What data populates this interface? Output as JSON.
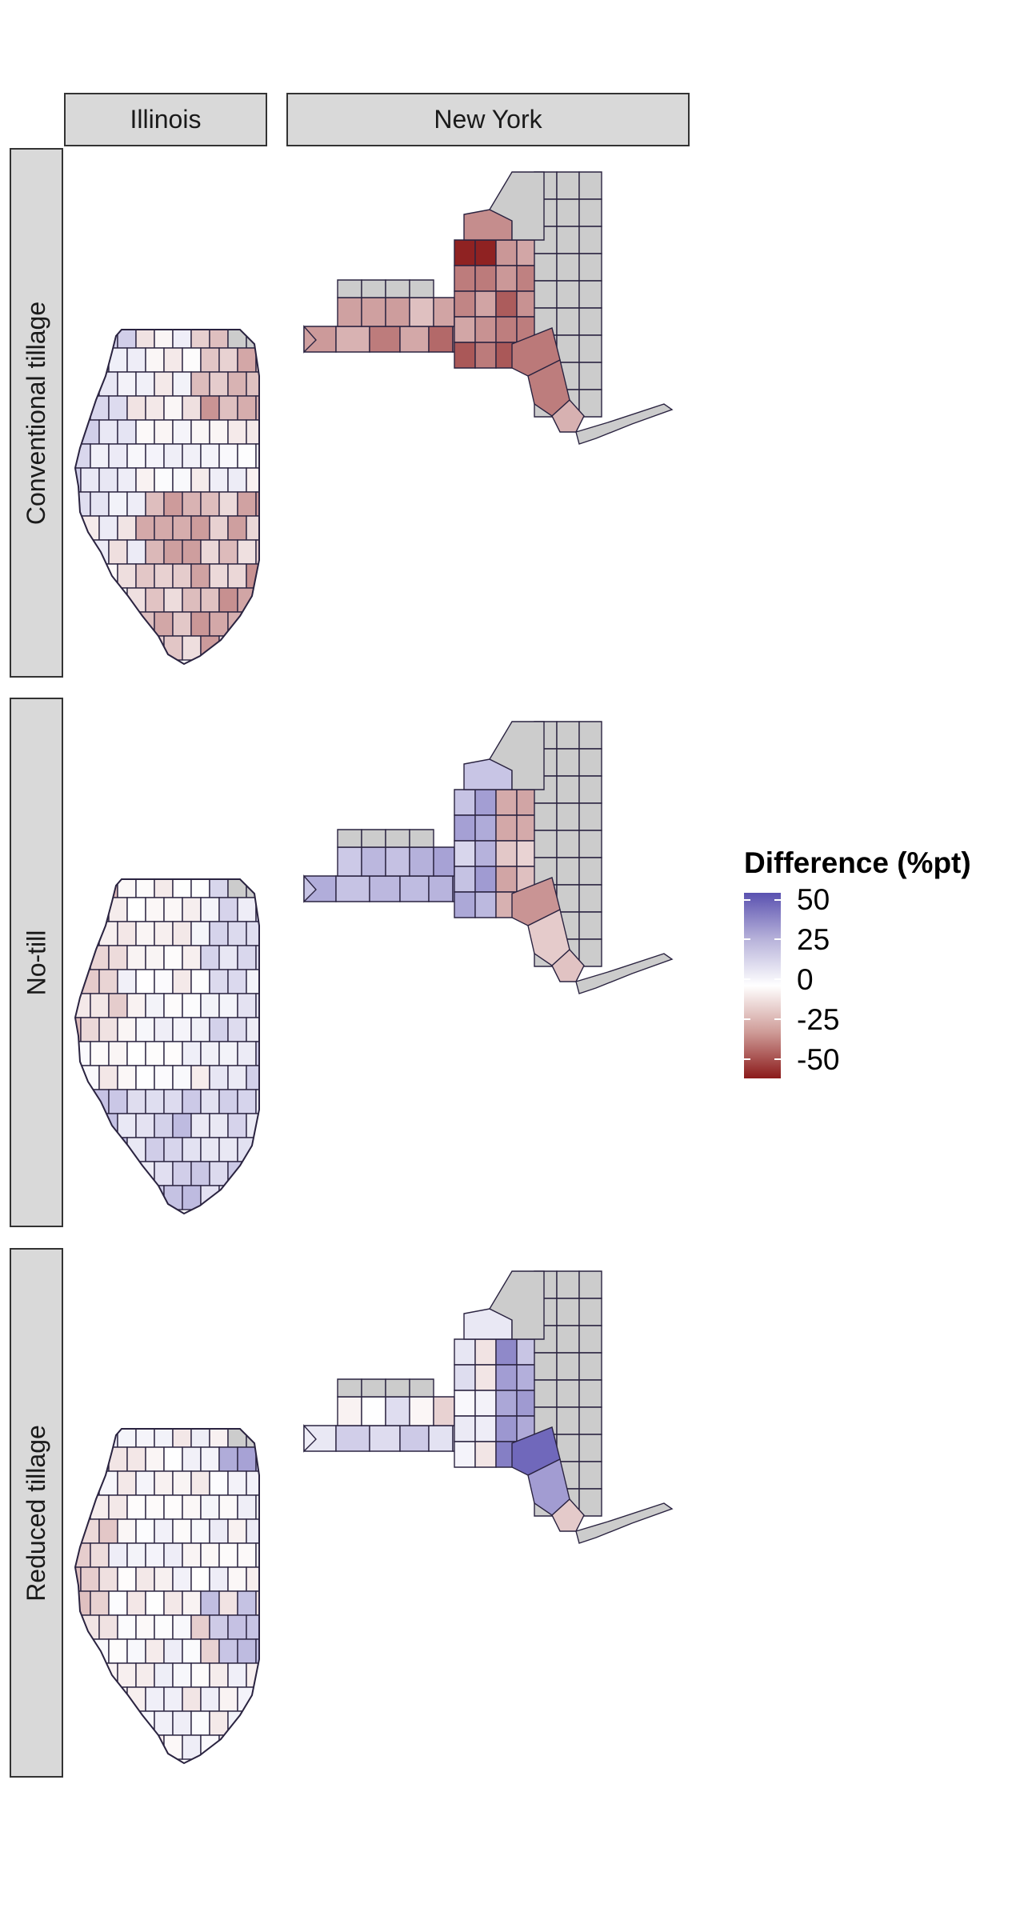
{
  "facets": {
    "columns": [
      "Illinois",
      "New York"
    ],
    "rows": [
      "Conventional tillage",
      "No-till",
      "Reduced tillage"
    ]
  },
  "legend": {
    "title": "Difference (%pt)",
    "breaks": [
      "50",
      "25",
      "0",
      "-25",
      "-50"
    ],
    "scale_min": -60,
    "scale_max": 60,
    "colors": {
      "high": "#5a51b0",
      "mid": "#ffffff",
      "low": "#8b1a1a",
      "na": "#cccccc",
      "border": "#2a2340"
    }
  },
  "chart_data": {
    "type": "choropleth",
    "fill_variable": "Difference (%pt)",
    "panels": [
      {
        "state": "Illinois",
        "practice": "Conventional tillage",
        "summary": "mostly near 0; slight positive in west-central; moderate negatives (-10 to -25) in east and south-central"
      },
      {
        "state": "New York",
        "practice": "Conventional tillage",
        "summary": "western/central counties negative (about -25 to -40); one northern county about -55; eastern counties no data (gray)"
      },
      {
        "state": "Illinois",
        "practice": "No-till",
        "summary": "mixed; slight positives in east and south, slight negatives in northwest"
      },
      {
        "state": "New York",
        "practice": "No-till",
        "summary": "western counties positive (about +15 to +40); a few central/southeastern counties negative (-10 to -25); eastern counties no data"
      },
      {
        "state": "Illinois",
        "practice": "Reduced tillage",
        "summary": "mostly near 0; a few positives in northeast and east; slight negatives in west"
      },
      {
        "state": "New York",
        "practice": "Reduced tillage",
        "summary": "central and southeastern counties positive (up to about +50); few slight negatives; eastern counties no data"
      }
    ]
  }
}
